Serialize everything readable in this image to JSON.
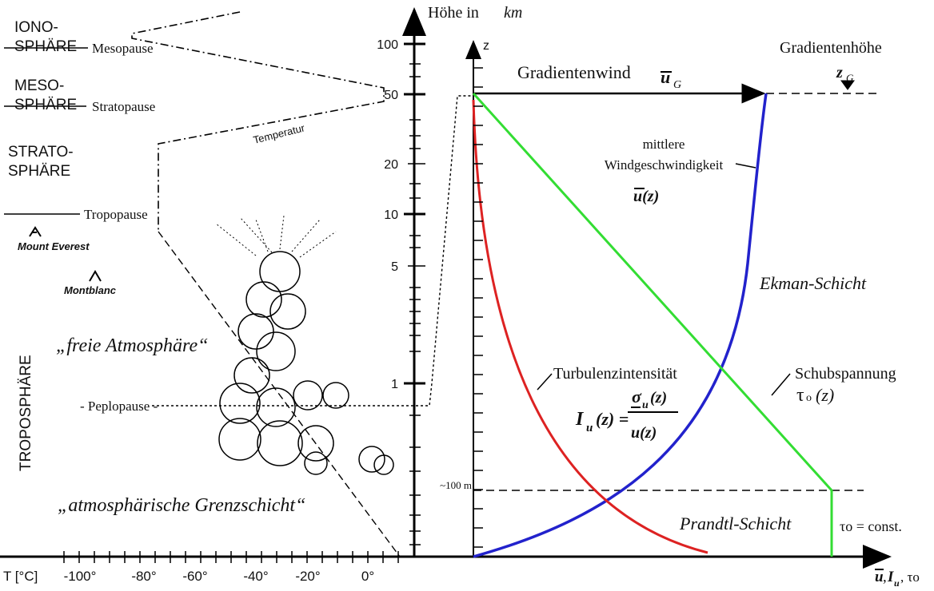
{
  "layers": {
    "iono": [
      "IONO-",
      "SPHÄRE"
    ],
    "meso": [
      "MESO-",
      "SPHÄRE"
    ],
    "strato": [
      "STRATO-",
      "SPHÄRE"
    ],
    "tropo": "TROPOSPHÄRE"
  },
  "boundaries": {
    "mesopause": "Mesopause",
    "stratopause": "Stratopause",
    "tropopause": "Tropopause",
    "peplopause": "- Peplopause -"
  },
  "temperature_label": "Temperatur",
  "mountains": [
    "Mount Everest",
    "Montblanc"
  ],
  "free_atmosphere": "„freie Atmosphäre“",
  "boundary_layer": "„atmosphärische Grenzschicht“",
  "height_axis": {
    "title": "Höhe in ",
    "unit": "km",
    "ticks": [
      "100",
      "50",
      "20",
      "10",
      "5",
      "1"
    ]
  },
  "temperature_axis": {
    "title": "T [°C]",
    "ticks": [
      "-100°",
      "-80°",
      "-60°",
      "-40°",
      "-20°",
      "0°"
    ]
  },
  "z_axis": {
    "label": "z",
    "marker": "~100 m"
  },
  "gradient": {
    "wind": "Gradientenwind",
    "u": "u",
    "sub": "G",
    "height": "Gradientenhöhe",
    "z": "z",
    "zsub": "G"
  },
  "mean_wind": {
    "lines": [
      "mittlere",
      "Windgeschwindigkeit"
    ],
    "symbol": "u(z)"
  },
  "ekman": "Ekman-Schicht",
  "prandtl": "Prandtl-Schicht",
  "turbulence": {
    "label": "Turbulenzintensität",
    "lhs": "I",
    "lhs_sub": "u",
    "lhs_rest": "(z) =",
    "num": "σ",
    "num_sub": "u",
    "num_rest": "(z)",
    "den": "u(z)"
  },
  "shear": {
    "label": "Schubspannung",
    "symbol": "τ",
    "sub": "o",
    "rest": "(z)",
    "const": "τo = const."
  },
  "x_axis_label": {
    "u": "u",
    "sep1": ", ",
    "I": "I",
    "I_sub": "u",
    "sep2": ", τo"
  }
}
